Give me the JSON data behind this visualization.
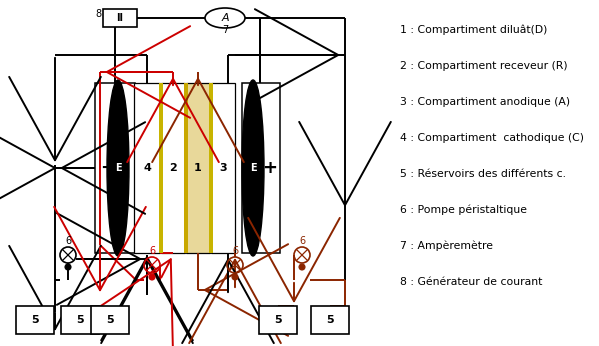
{
  "legend_items": [
    "1 : Compartiment diluât(D)",
    "2 : Compartiment receveur (R)",
    "3 : Compartiment anodique (A)",
    "4 : Compartiment  cathodique (C)",
    "5 : Réservoirs des différents c.",
    "6 : Pompe péristaltique",
    "7 : Ampèremètre",
    "8 : Générateur de courant"
  ],
  "background_color": "#ffffff",
  "colors": {
    "black": "#000000",
    "red": "#cc0000",
    "brown": "#8B2500"
  }
}
